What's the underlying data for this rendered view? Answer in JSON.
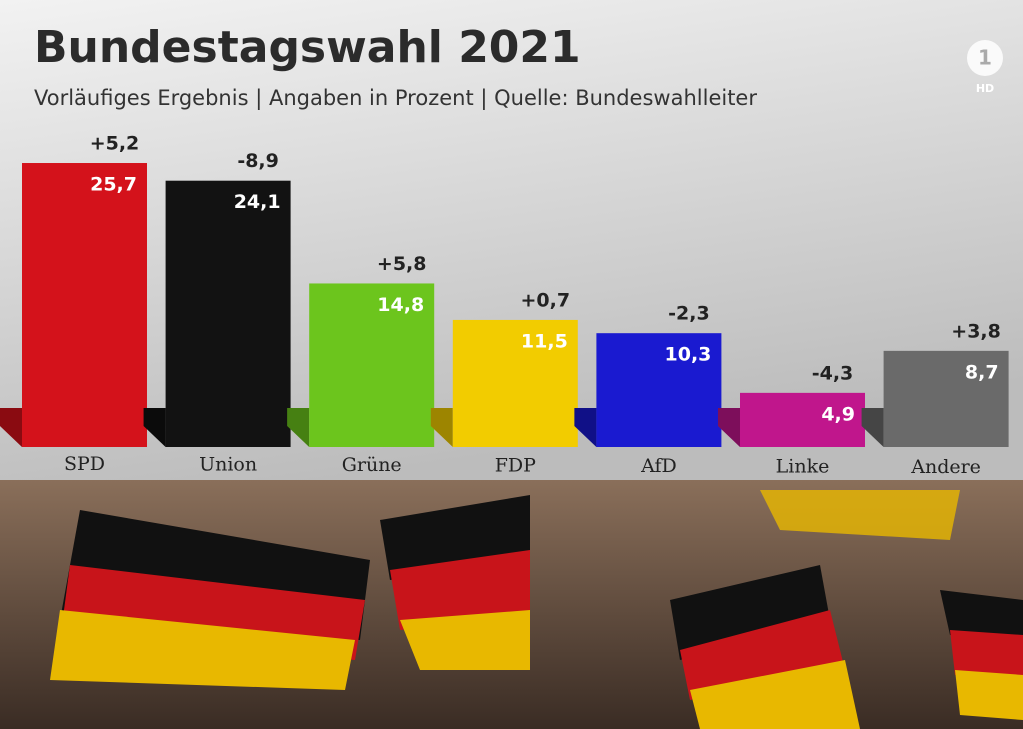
{
  "chart_data": {
    "type": "bar",
    "title": "Bundestagswahl 2021",
    "subtitle": "Vorläufiges Ergebnis | Angaben in Prozent | Quelle: Bundeswahlleiter",
    "categories": [
      "SPD",
      "Union",
      "Grüne",
      "FDP",
      "AfD",
      "Linke",
      "Andere"
    ],
    "values": [
      25.7,
      24.1,
      14.8,
      11.5,
      10.3,
      4.9,
      8.7
    ],
    "value_labels": [
      "25,7",
      "24,1",
      "14,8",
      "11,5",
      "10,3",
      "4,9",
      "8,7"
    ],
    "change_labels": [
      "+5,2",
      "-8,9",
      "+5,8",
      "+0,7",
      "-2,3",
      "-4,3",
      "+3,8"
    ],
    "colors": [
      "#d4121b",
      "#121212",
      "#6cc51d",
      "#f2cc00",
      "#1a1ad0",
      "#c0168c",
      "#6a6a6a"
    ],
    "logo": {
      "number": "1",
      "badge": "HD"
    }
  }
}
